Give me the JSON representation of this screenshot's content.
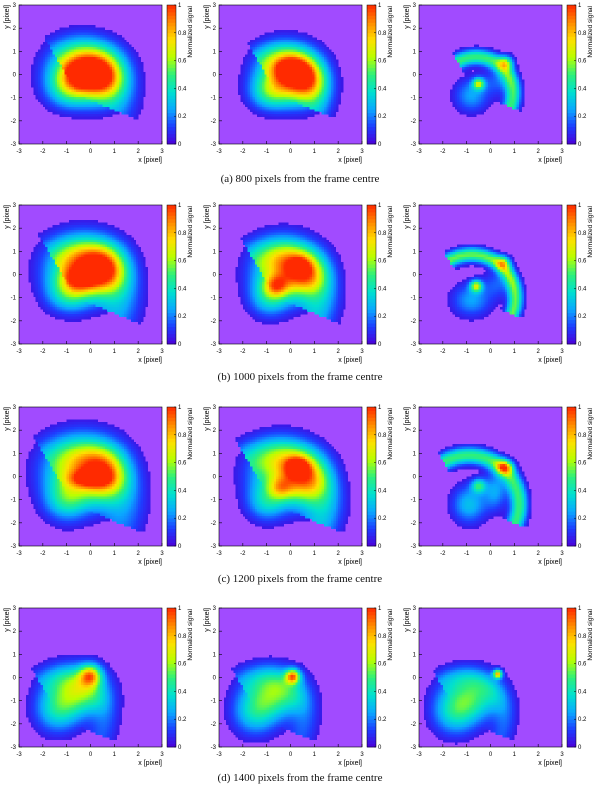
{
  "chart_data": {
    "type": "heatmap",
    "rows": [
      {
        "caption": "(a)  800 pixels from the frame centre",
        "panels": [
          {
            "blobs": [
              [
                -0.3,
                0.2,
                1.3,
                1.1,
                0.75
              ],
              [
                0.5,
                -0.2,
                0.9,
                1.0,
                0.55
              ],
              [
                -0.9,
                -0.6,
                0.9,
                0.8,
                0.35
              ]
            ],
            "peaks": [
              [
                -0.3,
                0.0,
                0.8,
                0.55,
                0.3
              ]
            ],
            "arc": {
              "cx": -0.5,
              "cy": -0.9,
              "r": 1.6,
              "w": 0.9,
              "a": 0.2
            }
          },
          {
            "blobs": [
              [
                -0.1,
                0.0,
                1.2,
                1.1,
                0.8
              ],
              [
                0.6,
                -0.3,
                0.8,
                0.9,
                0.45
              ],
              [
                -0.9,
                -0.8,
                0.8,
                0.7,
                0.3
              ]
            ],
            "peaks": [
              [
                0.0,
                0.2,
                0.6,
                0.45,
                0.35
              ]
            ],
            "arc": {
              "cx": -0.5,
              "cy": -0.9,
              "r": 1.6,
              "w": 0.7,
              "a": 0.25
            }
          },
          {
            "blobs": [
              [
                -0.8,
                -0.9,
                0.7,
                0.7,
                0.25
              ],
              [
                0.3,
                -0.3,
                0.6,
                0.6,
                0.15
              ]
            ],
            "peaks": [
              [
                -0.5,
                -0.4,
                0.25,
                0.25,
                0.55
              ],
              [
                0.65,
                0.5,
                0.3,
                0.3,
                0.45
              ]
            ],
            "arc": {
              "cx": -0.6,
              "cy": -0.8,
              "r": 1.55,
              "w": 0.32,
              "a": 0.5
            }
          }
        ]
      },
      {
        "caption": "(b)  1000 pixels from the frame centre",
        "panels": [
          {
            "blobs": [
              [
                -0.3,
                0.3,
                1.4,
                1.2,
                0.7
              ],
              [
                0.6,
                0.2,
                0.9,
                1.0,
                0.5
              ],
              [
                -0.9,
                -0.8,
                0.9,
                0.8,
                0.35
              ]
            ],
            "peaks": [
              [
                -0.4,
                -0.2,
                0.7,
                0.5,
                0.35
              ]
            ],
            "arc": {
              "cx": -0.6,
              "cy": -1.0,
              "r": 1.8,
              "w": 0.9,
              "a": 0.25
            }
          },
          {
            "blobs": [
              [
                -0.2,
                0.2,
                1.3,
                1.2,
                0.6
              ],
              [
                0.6,
                0.0,
                0.9,
                0.9,
                0.4
              ],
              [
                -0.9,
                -1.0,
                0.8,
                0.8,
                0.3
              ]
            ],
            "peaks": [
              [
                -0.6,
                -0.5,
                0.5,
                0.45,
                0.4
              ],
              [
                0.4,
                0.4,
                0.4,
                0.35,
                0.2
              ]
            ],
            "arc": {
              "cx": -0.6,
              "cy": -1.0,
              "r": 1.8,
              "w": 0.8,
              "a": 0.3
            }
          },
          {
            "blobs": [
              [
                -0.8,
                -1.1,
                0.8,
                0.7,
                0.25
              ],
              [
                0.3,
                -0.4,
                0.6,
                0.6,
                0.15
              ]
            ],
            "peaks": [
              [
                -0.6,
                -0.5,
                0.25,
                0.25,
                0.6
              ],
              [
                0.55,
                0.5,
                0.3,
                0.3,
                0.4
              ]
            ],
            "arc": {
              "cx": -0.8,
              "cy": -1.0,
              "r": 1.85,
              "w": 0.3,
              "a": 0.55
            }
          }
        ]
      },
      {
        "caption": "(c)  1200 pixels from the frame centre",
        "panels": [
          {
            "blobs": [
              [
                -0.3,
                0.3,
                1.5,
                1.3,
                0.65
              ],
              [
                0.6,
                0.0,
                0.9,
                1.1,
                0.45
              ],
              [
                -1.0,
                -1.0,
                0.9,
                0.9,
                0.35
              ]
            ],
            "peaks": [
              [
                -0.1,
                -0.1,
                0.8,
                0.35,
                0.35
              ]
            ],
            "arc": {
              "cx": -0.7,
              "cy": -1.2,
              "r": 2.1,
              "w": 0.9,
              "a": 0.2
            }
          },
          {
            "blobs": [
              [
                -0.2,
                0.2,
                1.4,
                1.2,
                0.55
              ],
              [
                0.6,
                -0.3,
                0.9,
                1.0,
                0.4
              ],
              [
                -1.0,
                -1.1,
                0.8,
                0.8,
                0.3
              ]
            ],
            "peaks": [
              [
                0.3,
                0.4,
                0.45,
                0.4,
                0.45
              ],
              [
                -0.4,
                -0.5,
                0.5,
                0.45,
                0.3
              ]
            ],
            "arc": {
              "cx": -0.7,
              "cy": -1.2,
              "r": 2.1,
              "w": 0.8,
              "a": 0.3
            }
          },
          {
            "blobs": [
              [
                -0.9,
                -1.2,
                0.7,
                0.8,
                0.3
              ],
              [
                0.2,
                -0.6,
                0.5,
                0.8,
                0.25
              ]
            ],
            "peaks": [
              [
                0.6,
                0.4,
                0.35,
                0.3,
                0.55
              ],
              [
                -0.5,
                -0.4,
                0.3,
                0.3,
                0.4
              ]
            ],
            "arc": {
              "cx": -0.9,
              "cy": -1.2,
              "r": 2.1,
              "w": 0.35,
              "a": 0.5
            }
          }
        ]
      },
      {
        "caption": "(d)  1400 pixels from the frame centre",
        "panels": [
          {
            "blobs": [
              [
                -0.6,
                -0.6,
                1.2,
                1.0,
                0.55
              ],
              [
                -1.4,
                -1.5,
                0.9,
                0.9,
                0.3
              ]
            ],
            "peaks": [
              [
                0.0,
                0.1,
                0.45,
                0.45,
                0.6
              ]
            ],
            "arc": {
              "cx": -1.2,
              "cy": -1.8,
              "r": 1.8,
              "w": 0.6,
              "a": 0.15
            }
          },
          {
            "blobs": [
              [
                -0.7,
                -0.7,
                1.2,
                1.0,
                0.5
              ],
              [
                -1.5,
                -1.6,
                0.9,
                0.9,
                0.3
              ]
            ],
            "peaks": [
              [
                0.1,
                0.05,
                0.3,
                0.3,
                0.7
              ]
            ],
            "arc": {
              "cx": -1.2,
              "cy": -1.8,
              "r": 1.8,
              "w": 0.6,
              "a": 0.15
            }
          },
          {
            "blobs": [
              [
                -0.8,
                -0.8,
                1.2,
                1.0,
                0.45
              ],
              [
                -1.5,
                -1.6,
                0.9,
                0.9,
                0.3
              ]
            ],
            "peaks": [
              [
                0.3,
                0.15,
                0.18,
                0.18,
                0.75
              ]
            ],
            "arc": {
              "cx": -1.2,
              "cy": -1.8,
              "r": 1.8,
              "w": 0.5,
              "a": 0.15
            }
          }
        ]
      }
    ],
    "axis": {
      "xlabel": "x [pixel]",
      "ylabel": "y [pixel]",
      "xlim": [
        -3,
        3
      ],
      "ylim": [
        -3,
        3
      ],
      "ticks": [
        -3,
        -2,
        -1,
        0,
        1,
        2,
        3
      ],
      "tick_labels": [
        "-3",
        "-2",
        "-1",
        "0",
        "1",
        "2",
        "3"
      ]
    },
    "colorbar": {
      "label": "Normalized signal",
      "range": [
        0,
        1
      ],
      "ticks": [
        0,
        0.2,
        0.4,
        0.6,
        0.8,
        1
      ],
      "tick_labels": [
        "0",
        "0.2",
        "0.4",
        "0.6",
        "0.8",
        "1"
      ],
      "colors": [
        "#4b00d8",
        "#1e3cff",
        "#0aa8ff",
        "#00e0d0",
        "#2ef07a",
        "#b8ff00",
        "#ffe000",
        "#ff8a00",
        "#ff2a00"
      ],
      "background_color": "#a14bff"
    }
  }
}
